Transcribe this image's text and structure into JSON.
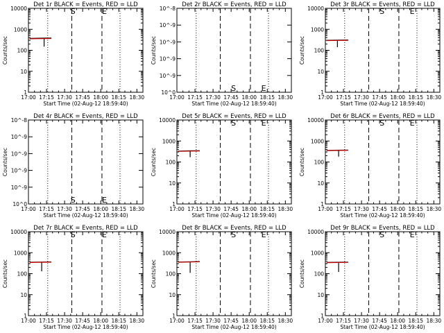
{
  "figure": {
    "start_time_label": "Start Time (02-Aug-12 18:59:40)",
    "ylabel": "Counts/sec"
  },
  "x_axis": {
    "range": [
      0,
      95
    ],
    "tick_minutes": [
      0,
      15,
      30,
      45,
      60,
      75,
      90
    ],
    "tick_labels": [
      "17:00",
      "17:15",
      "17:30",
      "17:45",
      "18:00",
      "18:15",
      "18:30"
    ],
    "dotted_minutes": [
      16,
      76
    ],
    "dashed_minutes": [
      36,
      61
    ]
  },
  "chart_data": [
    {
      "type": "line",
      "detector": "1r",
      "title": "Det 1r BLACK = Events, RED = LLD",
      "yscale": "counts",
      "ylim": [
        1,
        10000
      ],
      "y_ticks": [
        {
          "v": 1,
          "label": "1"
        },
        {
          "v": 10,
          "label": "10"
        },
        {
          "v": 100,
          "label": "100"
        },
        {
          "v": 1000,
          "label": "1000"
        },
        {
          "v": 10000,
          "label": "10000"
        }
      ],
      "markers": [
        {
          "t": 37,
          "label": "S",
          "y": 10000
        },
        {
          "t": 63,
          "label": "E",
          "y": 10000
        }
      ],
      "series": [
        {
          "name": "Events",
          "color": "#000000",
          "points": [
            [
              1,
              370
            ],
            [
              12,
              380
            ],
            [
              19,
              385
            ]
          ],
          "drops": [
            {
              "t": 13,
              "low": 150
            }
          ]
        },
        {
          "name": "LLD",
          "color": "#cc0000",
          "points": [
            [
              1,
              355
            ],
            [
              12,
              360
            ],
            [
              19,
              365
            ]
          ],
          "drops": []
        }
      ]
    },
    {
      "type": "line",
      "detector": "2r",
      "title": "Det 2r BLACK = Events, RED = LLD",
      "yscale": "tiny",
      "ylim": [
        0,
        1e-08
      ],
      "y_ticks": [
        {
          "v": 0,
          "label": "10^0"
        },
        {
          "v": 2e-09,
          "label": "10^-9"
        },
        {
          "v": 4e-09,
          "label": "10^-9"
        },
        {
          "v": 6e-09,
          "label": "10^-9"
        },
        {
          "v": 8e-09,
          "label": "10^-9"
        },
        {
          "v": 1e-08,
          "label": "10^-8"
        }
      ],
      "markers": [
        {
          "t": 47,
          "label": "S",
          "y": 0
        },
        {
          "t": 72,
          "label": "E",
          "y": 0
        }
      ],
      "series": [
        {
          "name": "Events",
          "color": "#000000",
          "points": [],
          "drops": []
        },
        {
          "name": "LLD",
          "color": "#cc0000",
          "points": [],
          "drops": []
        }
      ]
    },
    {
      "type": "line",
      "detector": "3r",
      "title": "Det 3r BLACK = Events, RED = LLD",
      "yscale": "counts",
      "ylim": [
        1,
        10000
      ],
      "y_ticks": [
        {
          "v": 1,
          "label": "1"
        },
        {
          "v": 10,
          "label": "10"
        },
        {
          "v": 100,
          "label": "100"
        },
        {
          "v": 1000,
          "label": "1000"
        },
        {
          "v": 10000,
          "label": "10000"
        }
      ],
      "markers": [
        {
          "t": 47,
          "label": "S",
          "y": 10000
        },
        {
          "t": 72,
          "label": "E",
          "y": 10000
        }
      ],
      "series": [
        {
          "name": "Events",
          "color": "#000000",
          "points": [
            [
              1,
              300
            ],
            [
              10,
              305
            ],
            [
              19,
              310
            ]
          ],
          "drops": [
            {
              "t": 10,
              "low": 140
            }
          ]
        },
        {
          "name": "LLD",
          "color": "#cc0000",
          "points": [
            [
              1,
              290
            ],
            [
              10,
              295
            ],
            [
              19,
              300
            ]
          ],
          "drops": []
        }
      ]
    },
    {
      "type": "line",
      "detector": "4r",
      "title": "Det 4r BLACK = Events, RED = LLD",
      "yscale": "tiny",
      "ylim": [
        0,
        1e-08
      ],
      "y_ticks": [
        {
          "v": 0,
          "label": "10^0"
        },
        {
          "v": 2e-09,
          "label": "10^-9"
        },
        {
          "v": 4e-09,
          "label": "10^-9"
        },
        {
          "v": 6e-09,
          "label": "10^-9"
        },
        {
          "v": 8e-09,
          "label": "10^-9"
        },
        {
          "v": 1e-08,
          "label": "10^-8"
        }
      ],
      "markers": [
        {
          "t": 37,
          "label": "S",
          "y": 0
        },
        {
          "t": 63,
          "label": "E",
          "y": 0
        }
      ],
      "series": [
        {
          "name": "Events",
          "color": "#000000",
          "points": [],
          "drops": []
        },
        {
          "name": "LLD",
          "color": "#cc0000",
          "points": [],
          "drops": []
        }
      ]
    },
    {
      "type": "line",
      "detector": "5r",
      "title": "Det 5r BLACK = Events, RED = LLD",
      "yscale": "counts",
      "ylim": [
        1,
        10000
      ],
      "y_ticks": [
        {
          "v": 1,
          "label": "1"
        },
        {
          "v": 10,
          "label": "10"
        },
        {
          "v": 100,
          "label": "100"
        },
        {
          "v": 1000,
          "label": "1000"
        },
        {
          "v": 10000,
          "label": "10000"
        }
      ],
      "markers": [
        {
          "t": 47,
          "label": "S",
          "y": 10000
        },
        {
          "t": 72,
          "label": "E",
          "y": 10000
        }
      ],
      "series": [
        {
          "name": "Events",
          "color": "#000000",
          "points": [
            [
              1,
              330
            ],
            [
              11,
              340
            ],
            [
              19,
              345
            ]
          ],
          "drops": [
            {
              "t": 11,
              "low": 170
            }
          ]
        },
        {
          "name": "LLD",
          "color": "#cc0000",
          "points": [
            [
              1,
              320
            ],
            [
              11,
              330
            ],
            [
              19,
              335
            ]
          ],
          "drops": []
        }
      ]
    },
    {
      "type": "line",
      "detector": "6r",
      "title": "Det 6r BLACK = Events, RED = LLD",
      "yscale": "counts",
      "ylim": [
        1,
        10000
      ],
      "y_ticks": [
        {
          "v": 1,
          "label": "1"
        },
        {
          "v": 10,
          "label": "10"
        },
        {
          "v": 100,
          "label": "100"
        },
        {
          "v": 1000,
          "label": "1000"
        },
        {
          "v": 10000,
          "label": "10000"
        }
      ],
      "markers": [
        {
          "t": 47,
          "label": "S",
          "y": 10000
        },
        {
          "t": 72,
          "label": "E",
          "y": 10000
        }
      ],
      "series": [
        {
          "name": "Events",
          "color": "#000000",
          "points": [
            [
              1,
              360
            ],
            [
              11,
              365
            ],
            [
              19,
              370
            ]
          ],
          "drops": [
            {
              "t": 11,
              "low": 180
            }
          ]
        },
        {
          "name": "LLD",
          "color": "#cc0000",
          "points": [
            [
              1,
              350
            ],
            [
              11,
              355
            ],
            [
              19,
              360
            ]
          ],
          "drops": []
        }
      ]
    },
    {
      "type": "line",
      "detector": "7r",
      "title": "Det 7r BLACK = Events, RED = LLD",
      "yscale": "counts",
      "ylim": [
        1,
        10000
      ],
      "y_ticks": [
        {
          "v": 1,
          "label": "1"
        },
        {
          "v": 10,
          "label": "10"
        },
        {
          "v": 100,
          "label": "100"
        },
        {
          "v": 1000,
          "label": "1000"
        },
        {
          "v": 10000,
          "label": "10000"
        }
      ],
      "markers": [
        {
          "t": 37,
          "label": "S",
          "y": 10000
        },
        {
          "t": 63,
          "label": "E",
          "y": 10000
        }
      ],
      "series": [
        {
          "name": "Events",
          "color": "#000000",
          "points": [
            [
              1,
              350
            ],
            [
              11,
              360
            ],
            [
              19,
              365
            ]
          ],
          "drops": [
            {
              "t": 11,
              "low": 130
            }
          ]
        },
        {
          "name": "LLD",
          "color": "#cc0000",
          "points": [
            [
              1,
              340
            ],
            [
              11,
              350
            ],
            [
              19,
              355
            ]
          ],
          "drops": []
        }
      ]
    },
    {
      "type": "line",
      "detector": "8r",
      "title": "Det 8r BLACK = Events, RED = LLD",
      "yscale": "counts",
      "ylim": [
        1,
        10000
      ],
      "y_ticks": [
        {
          "v": 1,
          "label": "1"
        },
        {
          "v": 10,
          "label": "10"
        },
        {
          "v": 100,
          "label": "100"
        },
        {
          "v": 1000,
          "label": "1000"
        },
        {
          "v": 10000,
          "label": "10000"
        }
      ],
      "markers": [
        {
          "t": 47,
          "label": "S",
          "y": 10000
        },
        {
          "t": 72,
          "label": "E",
          "y": 10000
        }
      ],
      "series": [
        {
          "name": "Events",
          "color": "#000000",
          "points": [
            [
              1,
              360
            ],
            [
              11,
              370
            ],
            [
              19,
              380
            ]
          ],
          "drops": [
            {
              "t": 11,
              "low": 110
            }
          ]
        },
        {
          "name": "LLD",
          "color": "#cc0000",
          "points": [
            [
              1,
              350
            ],
            [
              11,
              360
            ],
            [
              19,
              370
            ]
          ],
          "drops": []
        }
      ]
    },
    {
      "type": "line",
      "detector": "9r",
      "title": "Det 9r BLACK = Events, RED = LLD",
      "yscale": "counts",
      "ylim": [
        1,
        10000
      ],
      "y_ticks": [
        {
          "v": 1,
          "label": "1"
        },
        {
          "v": 10,
          "label": "10"
        },
        {
          "v": 100,
          "label": "100"
        },
        {
          "v": 1000,
          "label": "1000"
        },
        {
          "v": 10000,
          "label": "10000"
        }
      ],
      "markers": [
        {
          "t": 47,
          "label": "S",
          "y": 10000
        },
        {
          "t": 72,
          "label": "E",
          "y": 10000
        }
      ],
      "series": [
        {
          "name": "Events",
          "color": "#000000",
          "points": [
            [
              1,
              345
            ],
            [
              11,
              350
            ],
            [
              19,
              355
            ]
          ],
          "drops": [
            {
              "t": 11,
              "low": 120
            }
          ]
        },
        {
          "name": "LLD",
          "color": "#cc0000",
          "points": [
            [
              1,
              335
            ],
            [
              11,
              340
            ],
            [
              19,
              345
            ]
          ],
          "drops": []
        }
      ]
    }
  ]
}
